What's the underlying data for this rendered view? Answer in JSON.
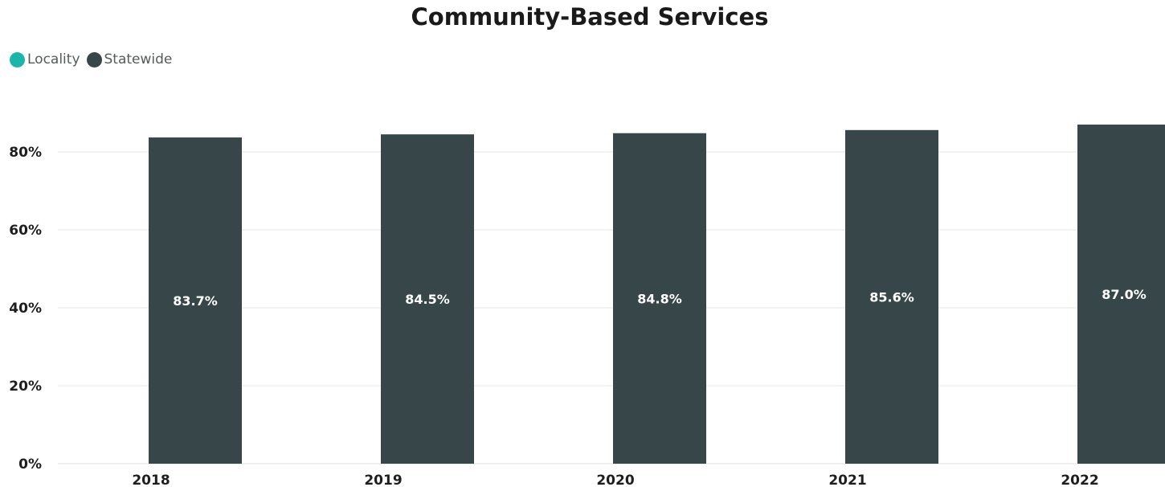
{
  "chart_data": {
    "type": "bar",
    "title": "Community-Based Services",
    "legend": [
      {
        "name": "Locality",
        "color": "#1ab5ab"
      },
      {
        "name": "Statewide",
        "color": "#374649"
      }
    ],
    "legend_position": "top-left",
    "categories": [
      "2018",
      "2019",
      "2020",
      "2021",
      "2022"
    ],
    "series": [
      {
        "name": "Statewide",
        "color": "#374649",
        "values": [
          83.7,
          84.5,
          84.8,
          85.6,
          87.0
        ],
        "labels": [
          "83.7%",
          "84.5%",
          "84.8%",
          "85.6%",
          "87.0%"
        ]
      }
    ],
    "y_ticks": [
      {
        "value": 0,
        "label": "0%"
      },
      {
        "value": 20,
        "label": "20%"
      },
      {
        "value": 40,
        "label": "40%"
      },
      {
        "value": 60,
        "label": "60%"
      },
      {
        "value": 80,
        "label": "80%"
      }
    ],
    "ylim": [
      0,
      100
    ],
    "grid": true
  }
}
